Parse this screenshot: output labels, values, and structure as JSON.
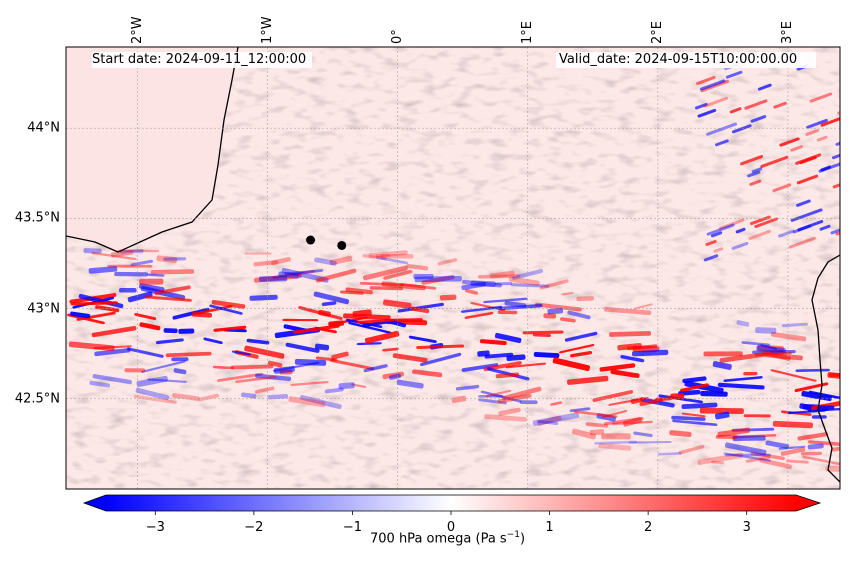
{
  "header": {
    "start_date": "Start date: 2024-09-11_12:00:00",
    "valid_date": "Valid_date: 2024-09-15T10:00:00.00"
  },
  "map": {
    "lon_ticks": [
      "2°W",
      "1°W",
      "0°",
      "1°E",
      "2°E",
      "3°E"
    ],
    "lon_values": [
      -2,
      -1,
      0,
      1,
      2,
      3
    ],
    "lat_ticks": [
      "44°N",
      "43.5°N",
      "43°N",
      "42.5°N"
    ],
    "lat_values": [
      44,
      43.5,
      43,
      42.5
    ],
    "lon_range": [
      -2.55,
      3.4
    ],
    "lat_range": [
      42.0,
      44.45
    ],
    "points": [
      {
        "lon": -0.67,
        "lat": 43.38
      },
      {
        "lon": -0.43,
        "lat": 43.35
      }
    ]
  },
  "colorbar": {
    "label_prefix": "700 hPa omega (Pa s",
    "label_exp": "−1",
    "label_suffix": ")",
    "ticks": [
      "−3",
      "−2",
      "−1",
      "0",
      "1",
      "2",
      "3"
    ],
    "tick_values": [
      -3,
      -2,
      -1,
      0,
      1,
      2,
      3
    ],
    "range": [
      -3.5,
      3.5
    ],
    "colormap": "bwr"
  },
  "colors": {
    "negative": "#0000ff",
    "positive": "#ff0000",
    "neutral": "#ffffff",
    "coastline": "#000000"
  }
}
